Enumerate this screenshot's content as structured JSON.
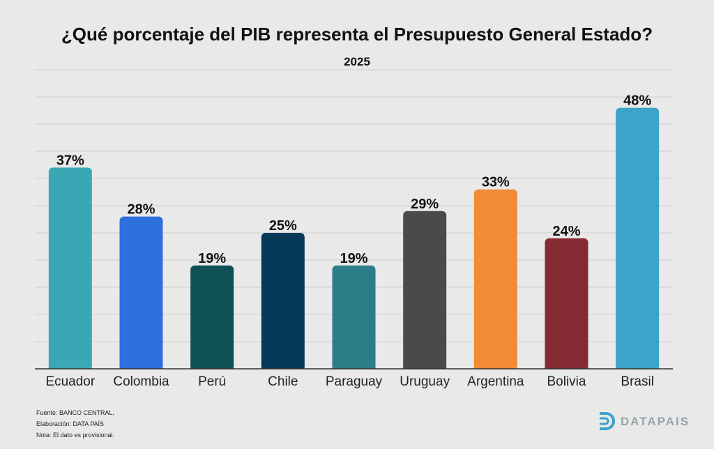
{
  "header": {
    "title": "¿Qué porcentaje del PIB representa el Presupuesto General Estado?",
    "subtitle": "2025"
  },
  "chart_data": {
    "type": "bar",
    "title": "¿Qué porcentaje del PIB representa el Presupuesto General Estado?",
    "subtitle": "2025",
    "categories": [
      "Ecuador",
      "Colombia",
      "Perú",
      "Chile",
      "Paraguay",
      "Uruguay",
      "Argentina",
      "Bolivia",
      "Brasil"
    ],
    "values": [
      37,
      28,
      19,
      25,
      19,
      29,
      33,
      24,
      48
    ],
    "data_labels": [
      "37%",
      "28%",
      "19%",
      "25%",
      "19%",
      "29%",
      "33%",
      "24%",
      "48%"
    ],
    "colors": [
      "#3aa7b4",
      "#2d6fdc",
      "#0f5057",
      "#063858",
      "#2b7d88",
      "#4a4a4a",
      "#f28a36",
      "#842a33",
      "#3ca3c9"
    ],
    "ylim": [
      0,
      55
    ],
    "grid": true,
    "legend": "none",
    "xlabel": "",
    "ylabel": ""
  },
  "footer": {
    "source": "Fuente: BANCO CENTRAL,",
    "elaboration": "Elaboración: DATA PAÍS",
    "note": "Nota: El dato es provisional."
  },
  "logo": {
    "text": "DATAPAIS",
    "color": "#3ca3c9"
  }
}
